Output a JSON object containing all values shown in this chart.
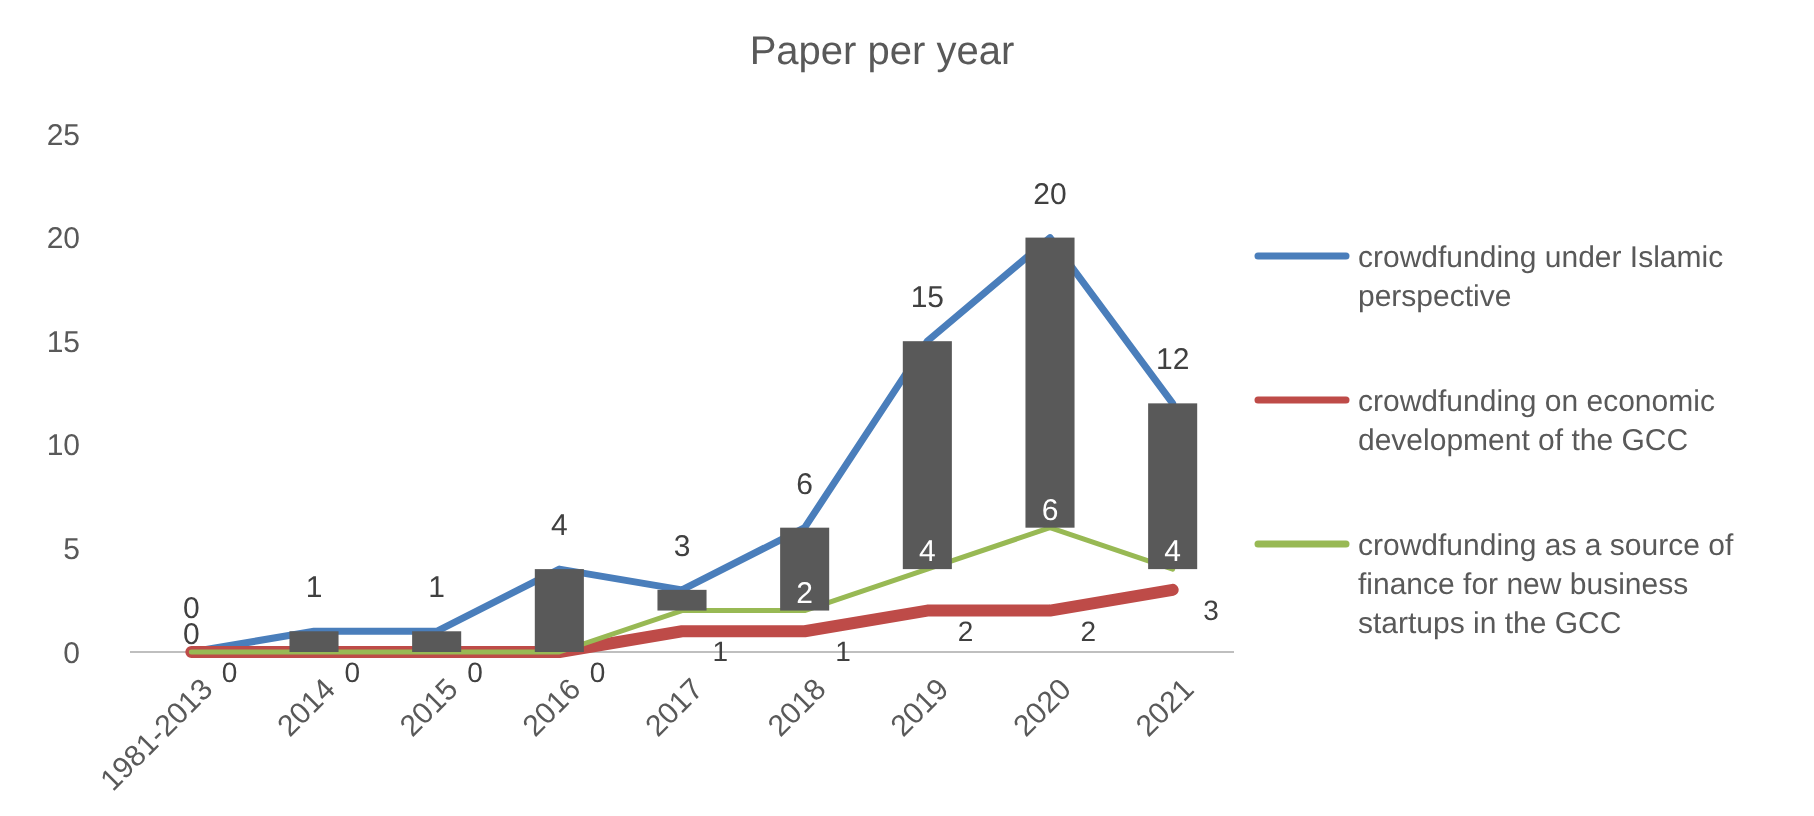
{
  "chart_data": {
    "type": "line",
    "title": "Paper per year",
    "categories": [
      "1981-2013",
      "2014",
      "2015",
      "2016",
      "2017",
      "2018",
      "2019",
      "2020",
      "2021"
    ],
    "series": [
      {
        "name": "crowdfunding under Islamic perspective",
        "color": "#4a7ebb",
        "values": [
          0,
          1,
          1,
          4,
          3,
          6,
          15,
          20,
          12
        ],
        "value_labels": [
          "0",
          "1",
          "1",
          "4",
          "3",
          "6",
          "15",
          "20",
          "12"
        ]
      },
      {
        "name": "crowdfunding on economic development of the GCC",
        "color": "#be4b48",
        "values": [
          0,
          0,
          0,
          0,
          1,
          1,
          2,
          2,
          3
        ],
        "value_labels": [
          "0",
          "0",
          "0",
          "0",
          "1",
          "1",
          "2",
          "2",
          "3"
        ]
      },
      {
        "name": "crowdfunding as a source of finance for new business startups in the GCC",
        "color": "#98b954",
        "values": [
          0,
          0,
          0,
          0,
          2,
          2,
          4,
          6,
          4
        ],
        "value_labels": [
          "0",
          null,
          null,
          null,
          null,
          "2",
          "4",
          "6",
          "4"
        ]
      },
      {
        "type": "bar",
        "color": "#595959",
        "values": [
          null,
          1,
          1,
          4,
          1,
          4,
          11,
          14,
          8
        ],
        "base": [
          null,
          0,
          0,
          0,
          2,
          2,
          4,
          6,
          4
        ]
      }
    ],
    "ylim": [
      0,
      25
    ],
    "yticks": [
      0,
      5,
      10,
      15,
      20,
      25
    ],
    "grid": false,
    "legend": "right",
    "marker": "none",
    "line_style": "solid"
  }
}
